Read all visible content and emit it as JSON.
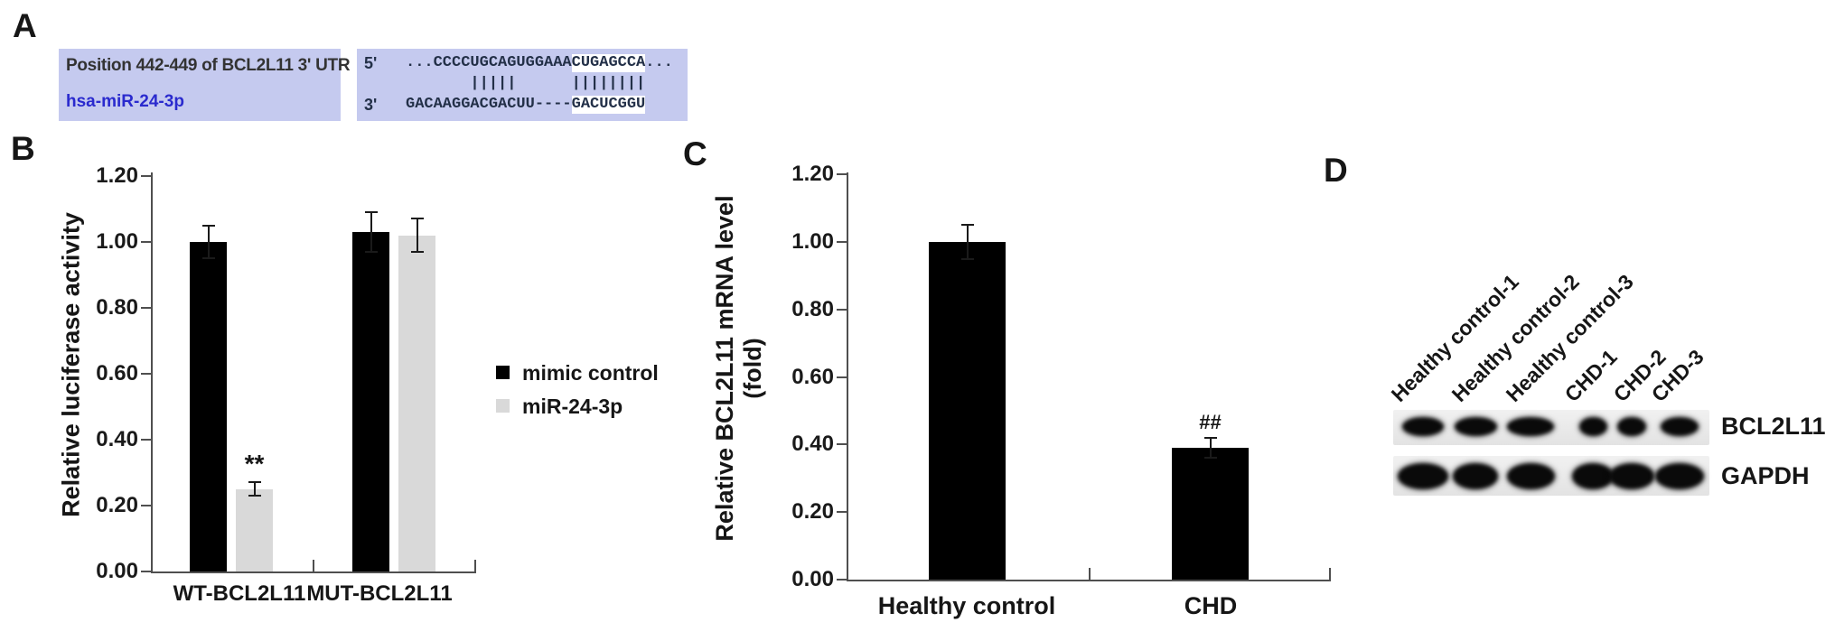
{
  "figure": {
    "background": "#ffffff"
  },
  "panels": {
    "A": {
      "label": "A",
      "row1_label": "Position 442-449 of BCL2L11 3' UTR",
      "row2_label": "hsa-miR-24-3p",
      "five_prime_mark": "5'",
      "three_prime_mark": "3'",
      "utr_seq": {
        "prefix": "...CCCCUGCAGUGGAAA",
        "seed": "CUGAGCCA",
        "suffix": "..."
      },
      "pairing_line": "       |||||      ||||||||",
      "mirna_seq": {
        "prefix": "GACAAGGACGACUU----",
        "seed": "GACUCGGU",
        "suffix": ""
      },
      "colors": {
        "box_bg": "#c5caef",
        "label_text": "#333333",
        "mirna_text": "#2a2ace",
        "seed_highlight": "#ffffff"
      }
    },
    "B": {
      "label": "B"
    },
    "C": {
      "label": "C"
    },
    "D": {
      "label": "D",
      "lanes": [
        "Healthy control-1",
        "Healthy control-2",
        "Healthy control-3",
        "CHD-1",
        "CHD-2",
        "CHD-3"
      ],
      "rows": [
        {
          "name": "BCL2L11",
          "band_widths": [
            46,
            47,
            52,
            31,
            32,
            42
          ],
          "band_height": 21
        },
        {
          "name": "GAPDH",
          "band_widths": [
            56,
            50,
            53,
            46,
            50,
            54
          ],
          "band_height": 29
        }
      ]
    }
  },
  "chart_data": [
    {
      "type": "bar",
      "panel": "B",
      "title": "",
      "ylabel": "Relative luciferase activity",
      "xlabel": "",
      "ylim": [
        0,
        1.2
      ],
      "yticks": [
        "1.20",
        "1.00",
        "0.80",
        "0.60",
        "0.40",
        "0.20",
        "0.00"
      ],
      "categories": [
        "WT-BCL2L11",
        "MUT-BCL2L11"
      ],
      "series": [
        {
          "name": "mimic control",
          "color": "#000000",
          "values": [
            1.0,
            1.03
          ],
          "errors": [
            0.05,
            0.06
          ]
        },
        {
          "name": "miR-24-3p",
          "color": "#d9d9d9",
          "values": [
            0.25,
            1.02
          ],
          "errors": [
            0.02,
            0.05
          ]
        }
      ],
      "annotations": [
        {
          "text": "**",
          "category_index": 0,
          "series_index": 1
        }
      ],
      "legend_position": "right",
      "grid": false
    },
    {
      "type": "bar",
      "panel": "C",
      "title": "",
      "ylabel": "Relative BCL2L11 mRNA level (fold)",
      "ylabel_lines": [
        "Relative BCL2L11 mRNA level",
        "(fold)"
      ],
      "xlabel": "",
      "ylim": [
        0,
        1.2
      ],
      "yticks": [
        "1.20",
        "1.00",
        "0.80",
        "0.60",
        "0.40",
        "0.20",
        "0.00"
      ],
      "categories": [
        "Healthy control",
        "CHD"
      ],
      "series": [
        {
          "name": "",
          "color": "#000000",
          "values": [
            1.0,
            0.39
          ],
          "errors": [
            0.05,
            0.03
          ]
        }
      ],
      "annotations": [
        {
          "text": "##",
          "category_index": 1,
          "series_index": 0
        }
      ],
      "legend_position": "none",
      "grid": false
    }
  ]
}
